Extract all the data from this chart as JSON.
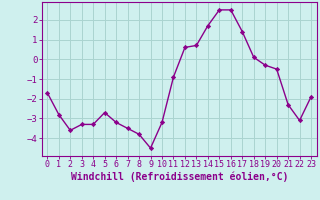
{
  "x": [
    0,
    1,
    2,
    3,
    4,
    5,
    6,
    7,
    8,
    9,
    10,
    11,
    12,
    13,
    14,
    15,
    16,
    17,
    18,
    19,
    20,
    21,
    22,
    23
  ],
  "y": [
    -1.7,
    -2.8,
    -3.6,
    -3.3,
    -3.3,
    -2.7,
    -3.2,
    -3.5,
    -3.8,
    -4.5,
    -3.2,
    -0.9,
    0.6,
    0.7,
    1.7,
    2.5,
    2.5,
    1.4,
    0.1,
    -0.3,
    -0.5,
    -2.3,
    -3.1,
    -1.9
  ],
  "line_color": "#8B008B",
  "marker": "D",
  "marker_size": 2.2,
  "xlabel": "Windchill (Refroidissement éolien,°C)",
  "ylim": [
    -4.9,
    2.9
  ],
  "xlim": [
    -0.5,
    23.5
  ],
  "yticks": [
    -4,
    -3,
    -2,
    -1,
    0,
    1,
    2
  ],
  "xticks": [
    0,
    1,
    2,
    3,
    4,
    5,
    6,
    7,
    8,
    9,
    10,
    11,
    12,
    13,
    14,
    15,
    16,
    17,
    18,
    19,
    20,
    21,
    22,
    23
  ],
  "bg_color": "#cff0ee",
  "grid_color": "#aad4d0",
  "tick_fontsize": 6.0,
  "xlabel_fontsize": 7.0,
  "line_width": 1.0
}
